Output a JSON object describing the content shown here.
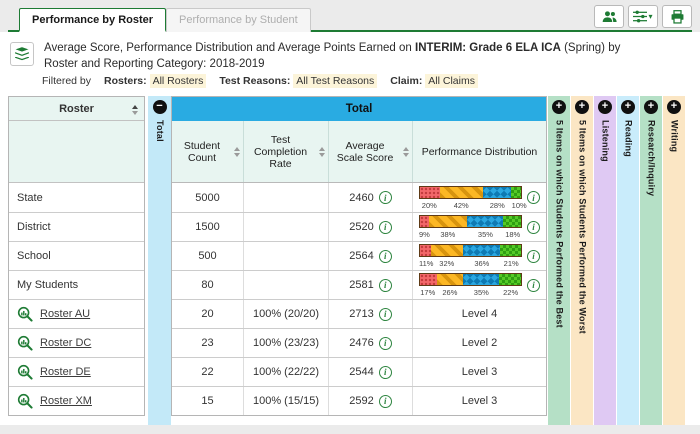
{
  "tabs": [
    {
      "label": "Performance by Roster",
      "active": true
    },
    {
      "label": "Performance by Student",
      "active": false
    }
  ],
  "toolbar": {
    "buttons": [
      {
        "icon": "group-icon"
      },
      {
        "icon": "column-settings-icon"
      },
      {
        "icon": "print-icon"
      }
    ]
  },
  "title": {
    "part1": "Average Score, Performance Distribution and Average Points Earned on ",
    "em": "INTERIM: Grade 6 ELA ICA",
    "part2": " (Spring) by Roster and Reporting Category: 2018-2019"
  },
  "filters": {
    "prefix": "Filtered by",
    "items": [
      {
        "label": "Rosters:",
        "value": "All Rosters"
      },
      {
        "label": "Test Reasons:",
        "value": "All Test Reasons"
      },
      {
        "label": "Claim:",
        "value": "All Claims"
      }
    ]
  },
  "table": {
    "roster_header": "Roster",
    "group_header": "Total",
    "collapse_column": "Total",
    "columns": [
      "Student Count",
      "Test Completion Rate",
      "Average Scale Score",
      "Performance Distribution"
    ],
    "rows": [
      {
        "name": "State",
        "link": false,
        "count": "5000",
        "rate": "",
        "score": "2460",
        "dist": [
          20,
          42,
          28,
          10
        ]
      },
      {
        "name": "District",
        "link": false,
        "count": "1500",
        "rate": "",
        "score": "2520",
        "dist": [
          9,
          38,
          35,
          18
        ]
      },
      {
        "name": "School",
        "link": false,
        "count": "500",
        "rate": "",
        "score": "2564",
        "dist": [
          11,
          32,
          36,
          21
        ]
      },
      {
        "name": "My Students",
        "link": false,
        "count": "80",
        "rate": "",
        "score": "2581",
        "dist": [
          17,
          26,
          35,
          22
        ]
      },
      {
        "name": "Roster AU",
        "link": true,
        "count": "20",
        "rate": "100% (20/20)",
        "score": "2713",
        "level": "Level 4"
      },
      {
        "name": "Roster DC",
        "link": true,
        "count": "23",
        "rate": "100% (23/23)",
        "score": "2476",
        "level": "Level 2"
      },
      {
        "name": "Roster DE",
        "link": true,
        "count": "22",
        "rate": "100% (22/22)",
        "score": "2544",
        "level": "Level 3"
      },
      {
        "name": "Roster XM",
        "link": true,
        "count": "15",
        "rate": "100% (15/15)",
        "score": "2592",
        "level": "Level 3"
      }
    ],
    "expand_columns": [
      {
        "label": "5 Items on which Students Performed the Best",
        "color": "#b5e0c6"
      },
      {
        "label": "5 Items on which Students Performed the Worst",
        "color": "#fbe6c4"
      },
      {
        "label": "Listening",
        "color": "#dfc9f3"
      },
      {
        "label": "Reading",
        "color": "#c9ecfb"
      },
      {
        "label": "Research/Inquiry",
        "color": "#b5e0c6"
      },
      {
        "label": "Writing",
        "color": "#fbe6c4"
      }
    ]
  },
  "colors": {
    "accent_green": "#1e7b34",
    "header_blue": "#29abe2",
    "level1_red": "#f3686a",
    "level2_yellow": "#fcb724",
    "level3_blue": "#2aa7e0",
    "level4_green": "#55ca26"
  }
}
